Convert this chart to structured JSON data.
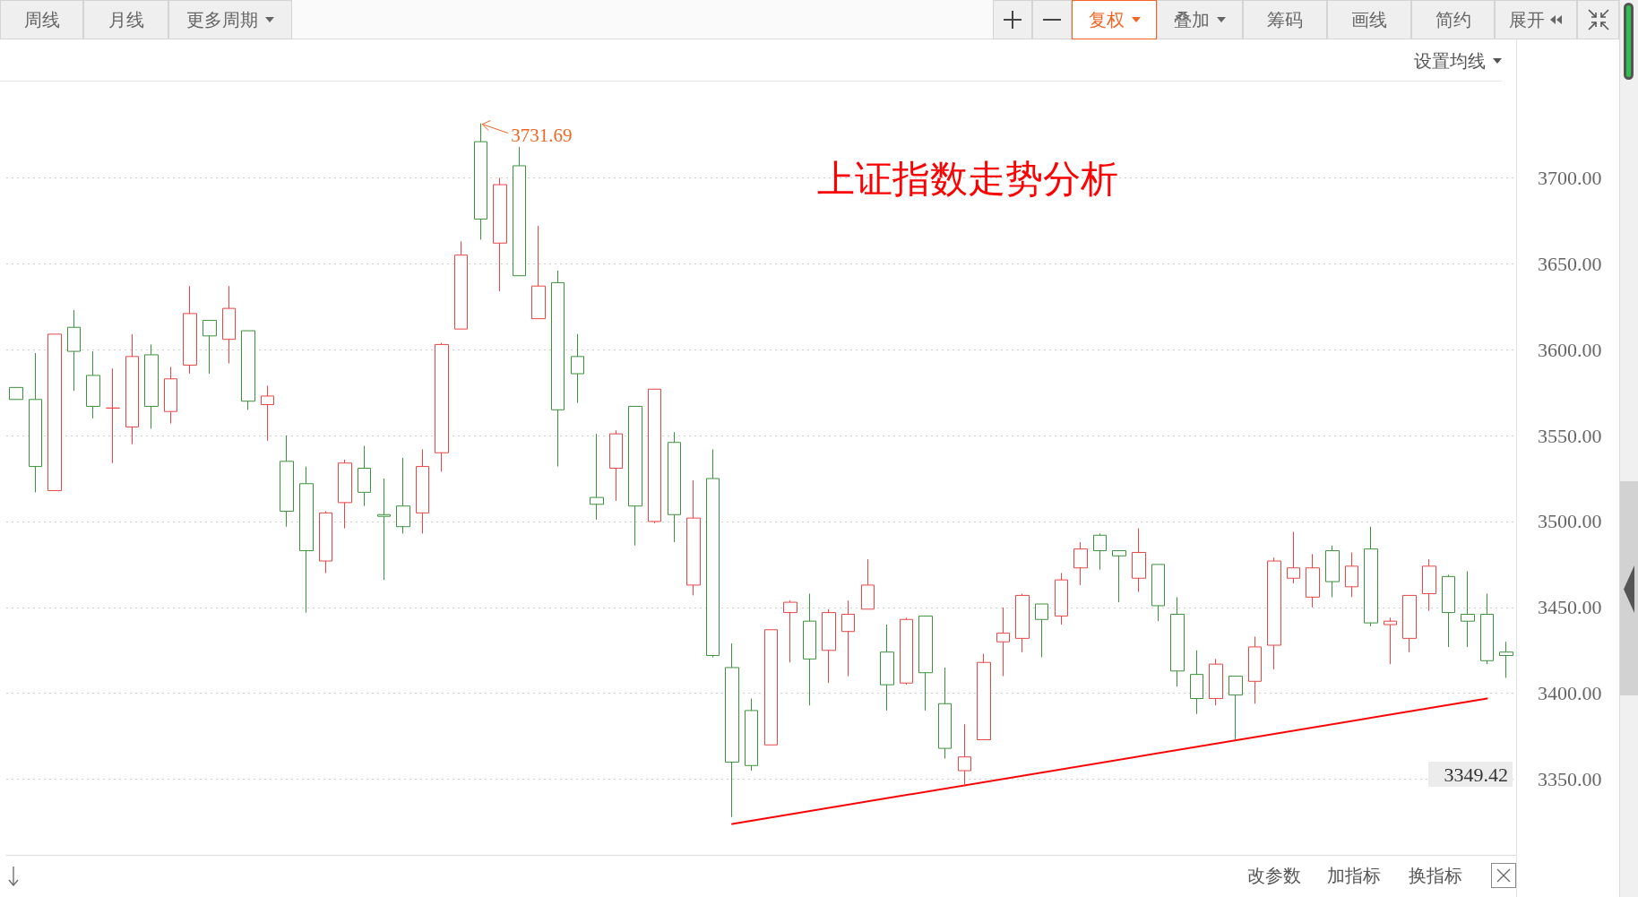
{
  "chart_data": {
    "type": "candlestick",
    "title": "上证指数走势分析",
    "categories": [
      null,
      null,
      null,
      null,
      null,
      null,
      null,
      null,
      null,
      null,
      null,
      null,
      null,
      null,
      null,
      null,
      null,
      null,
      null,
      null,
      null,
      null,
      null,
      null,
      null,
      null,
      null,
      null,
      null,
      null,
      null,
      null,
      null,
      null,
      null,
      null,
      null,
      null,
      null,
      null,
      null,
      null,
      null,
      null,
      null,
      null,
      null,
      null,
      null,
      null,
      null,
      null,
      null,
      null,
      null,
      null,
      null,
      null,
      null,
      null,
      null,
      null,
      null,
      null,
      null,
      null,
      null,
      null,
      null,
      null,
      null,
      null,
      null,
      null,
      null,
      null,
      null,
      null
    ],
    "ohlc": [
      [
        3578,
        3578,
        3571,
        3571
      ],
      [
        3571,
        3598,
        3517,
        3532
      ],
      [
        3518,
        3609,
        3518,
        3609
      ],
      [
        3613,
        3623,
        3576,
        3599
      ],
      [
        3585,
        3599,
        3560,
        3567
      ],
      [
        3566,
        3589,
        3534,
        3566
      ],
      [
        3555,
        3609,
        3545,
        3596
      ],
      [
        3597,
        3603,
        3554,
        3567
      ],
      [
        3564,
        3590,
        3557,
        3583
      ],
      [
        3591,
        3637,
        3586,
        3621
      ],
      [
        3617,
        3617,
        3586,
        3608
      ],
      [
        3606,
        3637,
        3592,
        3624
      ],
      [
        3611,
        3611,
        3565,
        3570
      ],
      [
        3568,
        3579,
        3547,
        3573
      ],
      [
        3535,
        3550,
        3497,
        3506
      ],
      [
        3522,
        3532,
        3447,
        3483
      ],
      [
        3477,
        3506,
        3470,
        3505
      ],
      [
        3511,
        3536,
        3496,
        3534
      ],
      [
        3531,
        3544,
        3509,
        3517
      ],
      [
        3504,
        3525,
        3466,
        3503
      ],
      [
        3509,
        3537,
        3493,
        3497
      ],
      [
        3505,
        3542,
        3493,
        3532
      ],
      [
        3540,
        3604,
        3529,
        3603
      ],
      [
        3612,
        3663,
        3612,
        3655
      ],
      [
        3721,
        3731.69,
        3664,
        3676
      ],
      [
        3662,
        3700,
        3634,
        3696
      ],
      [
        3707,
        3718,
        3643,
        3643
      ],
      [
        3618,
        3672,
        3618,
        3637
      ],
      [
        3639,
        3646,
        3532,
        3565
      ],
      [
        3596,
        3609,
        3569,
        3586
      ],
      [
        3514,
        3551,
        3501,
        3510
      ],
      [
        3531,
        3553,
        3512,
        3551
      ],
      [
        3567,
        3567,
        3486,
        3509
      ],
      [
        3500,
        3577,
        3499,
        3577
      ],
      [
        3546,
        3552,
        3488,
        3504
      ],
      [
        3463,
        3524,
        3457,
        3502
      ],
      [
        3525,
        3542,
        3421,
        3422
      ],
      [
        3415,
        3429,
        3328,
        3360
      ],
      [
        3390,
        3397,
        3355,
        3358
      ],
      [
        3370,
        3437,
        3370,
        3437
      ],
      [
        3447,
        3454,
        3418,
        3453
      ],
      [
        3442,
        3458,
        3393,
        3420
      ],
      [
        3425,
        3449,
        3406,
        3447
      ],
      [
        3436,
        3454,
        3410,
        3446
      ],
      [
        3449,
        3478,
        3449,
        3463
      ],
      [
        3424,
        3440,
        3390,
        3405
      ],
      [
        3406,
        3444,
        3405,
        3443
      ],
      [
        3445,
        3445,
        3390,
        3412
      ],
      [
        3394,
        3415,
        3362,
        3368
      ],
      [
        3355,
        3382,
        3346,
        3363
      ],
      [
        3373,
        3423,
        3373,
        3418
      ],
      [
        3430,
        3450,
        3410,
        3435
      ],
      [
        3432,
        3458,
        3424,
        3457
      ],
      [
        3452,
        3452,
        3421,
        3443
      ],
      [
        3445,
        3470,
        3440,
        3466
      ],
      [
        3473,
        3488,
        3463,
        3484
      ],
      [
        3492,
        3493,
        3472,
        3483
      ],
      [
        3483,
        3483,
        3453,
        3480
      ],
      [
        3467,
        3496,
        3459,
        3482
      ],
      [
        3475,
        3475,
        3442,
        3451
      ],
      [
        3446,
        3456,
        3404,
        3413
      ],
      [
        3411,
        3425,
        3388,
        3397
      ],
      [
        3397,
        3420,
        3393,
        3417
      ],
      [
        3410,
        3410,
        3373,
        3399
      ],
      [
        3407,
        3433,
        3394,
        3427
      ],
      [
        3428,
        3479,
        3414,
        3477
      ],
      [
        3467,
        3494,
        3464,
        3473
      ],
      [
        3456,
        3481,
        3450,
        3473
      ],
      [
        3483,
        3486,
        3456,
        3465
      ],
      [
        3462,
        3482,
        3456,
        3474
      ],
      [
        3484,
        3497,
        3439,
        3441
      ],
      [
        3440,
        3444,
        3417,
        3442
      ],
      [
        3432,
        3457,
        3424,
        3457
      ],
      [
        3458,
        3478,
        3448,
        3474
      ],
      [
        3468,
        3469,
        3427,
        3447
      ],
      [
        3446,
        3471,
        3427,
        3442
      ],
      [
        3446,
        3458,
        3417,
        3419
      ],
      [
        3424,
        3430,
        3409,
        3422
      ]
    ],
    "colors": [
      "#3a923a",
      "#3a923a",
      "#ee4444",
      "#3a923a",
      "#3a923a",
      "#ee4444",
      "#ee4444",
      "#3a923a",
      "#ee4444",
      "#ee4444",
      "#3a923a",
      "#ee4444",
      "#3a923a",
      "#ee4444",
      "#3a923a",
      "#3a923a",
      "#ee4444",
      "#ee4444",
      "#3a923a",
      "#3a923a",
      "#3a923a",
      "#ee4444",
      "#ee4444",
      "#ee4444",
      "#3a923a",
      "#ee4444",
      "#3a923a",
      "#ee4444",
      "#3a923a",
      "#3a923a",
      "#3a923a",
      "#ee4444",
      "#3a923a",
      "#ee4444",
      "#3a923a",
      "#ee4444",
      "#3a923a",
      "#3a923a",
      "#3a923a",
      "#ee4444",
      "#ee4444",
      "#3a923a",
      "#ee4444",
      "#ee4444",
      "#ee4444",
      "#3a923a",
      "#ee4444",
      "#3a923a",
      "#3a923a",
      "#ee4444",
      "#ee4444",
      "#ee4444",
      "#ee4444",
      "#3a923a",
      "#ee4444",
      "#ee4444",
      "#3a923a",
      "#3a923a",
      "#ee4444",
      "#3a923a",
      "#3a923a",
      "#3a923a",
      "#ee4444",
      "#3a923a",
      "#ee4444",
      "#ee4444",
      "#ee4444",
      "#ee4444",
      "#3a923a",
      "#ee4444",
      "#3a923a",
      "#ee4444",
      "#ee4444",
      "#ee4444",
      "#3a923a",
      "#3a923a",
      "#3a923a",
      "#3a923a"
    ],
    "series": [
      {
        "type": "line",
        "values": [
          null,
          null,
          null,
          null,
          null,
          null,
          null,
          null,
          null,
          null,
          null,
          null,
          null,
          null,
          null,
          null,
          null,
          null,
          null,
          null,
          null,
          null,
          null,
          null,
          null,
          null,
          null,
          null,
          null,
          null,
          null,
          null,
          null,
          null,
          null,
          null,
          null,
          3324,
          null,
          null,
          null,
          null,
          null,
          null,
          null,
          null,
          null,
          null,
          null,
          null,
          null,
          null,
          null,
          null,
          null,
          null,
          null,
          null,
          null,
          null,
          null,
          null,
          null,
          null,
          null,
          null,
          null,
          null,
          null,
          null,
          null,
          null,
          null,
          null,
          null,
          null,
          3397,
          null
        ],
        "color": "#ff0000",
        "marker": "none"
      }
    ],
    "ylim": [
      3306,
      3756
    ],
    "yticks": [
      {
        "value": 3350,
        "label": "3350.00"
      },
      {
        "value": 3400,
        "label": "3400.00"
      },
      {
        "value": 3450,
        "label": "3450.00"
      },
      {
        "value": 3500,
        "label": "3500.00"
      },
      {
        "value": 3550,
        "label": "3550.00"
      },
      {
        "value": 3600,
        "label": "3600.00"
      },
      {
        "value": 3650,
        "label": "3650.00"
      },
      {
        "value": 3700,
        "label": "3700.00"
      }
    ],
    "grid": "y",
    "tick_labels": "y",
    "annotations": [
      "周线",
      "月线",
      "更多周期",
      "复权",
      "叠加",
      "筹码",
      "画线",
      "简约",
      "展开",
      "设置均线",
      "改参数",
      "加指标",
      "换指标",
      "3731.69",
      "3349.42"
    ]
  }
}
